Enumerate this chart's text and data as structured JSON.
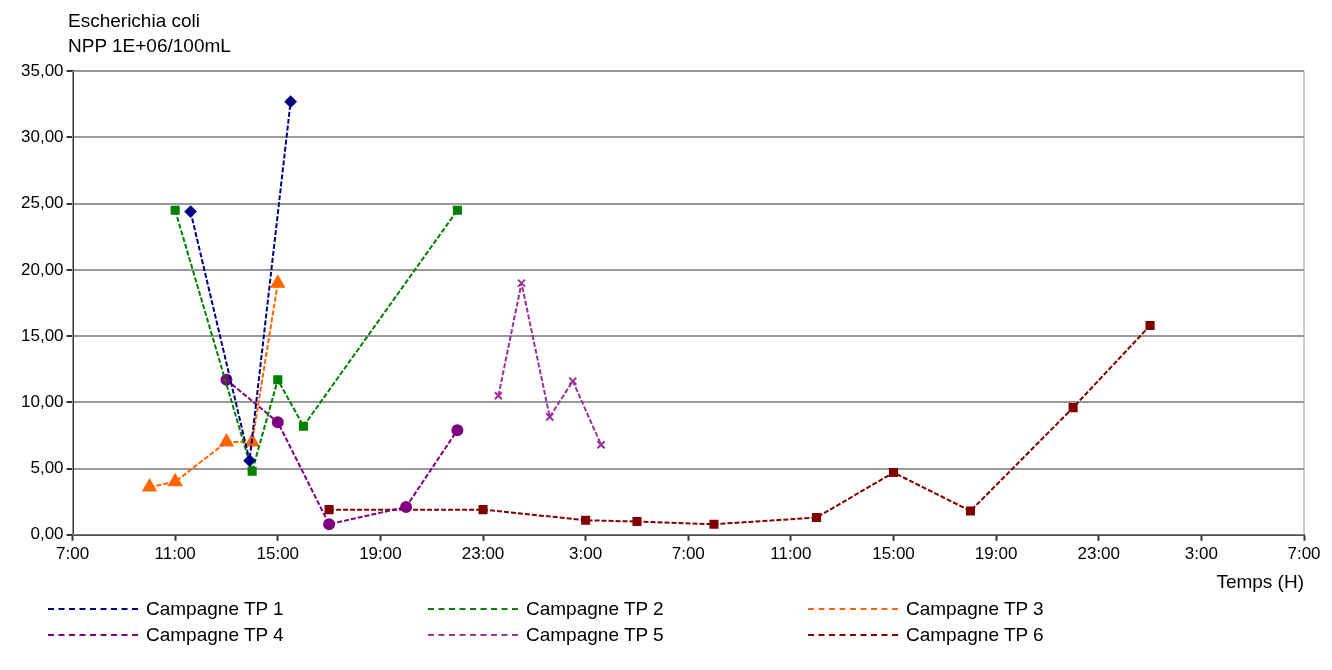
{
  "chart_data": {
    "type": "line",
    "ylabel": "Escherichia coli\nNPP 1E+06/100mL",
    "xlabel": "Temps (H)",
    "xlim": [
      "--01-01T07:00",
      "--01-03T07:00"
    ],
    "xticks": [
      {
        "value": "--01-01T07:00",
        "label": "7:00"
      },
      {
        "value": "--01-01T11:00",
        "label": "11:00"
      },
      {
        "value": "--01-01T15:00",
        "label": "15:00"
      },
      {
        "value": "--01-01T19:00",
        "label": "19:00"
      },
      {
        "value": "--01-01T23:00",
        "label": "23:00"
      },
      {
        "value": "--01-02T03:00",
        "label": "3:00"
      },
      {
        "value": "--01-02T07:00",
        "label": "7:00"
      },
      {
        "value": "--01-02T11:00",
        "label": "11:00"
      },
      {
        "value": "--01-02T15:00",
        "label": "15:00"
      },
      {
        "value": "--01-02T19:00",
        "label": "19:00"
      },
      {
        "value": "--01-02T23:00",
        "label": "23:00"
      },
      {
        "value": "--01-03T03:00",
        "label": "3:00"
      },
      {
        "value": "--01-03T07:00",
        "label": "7:00"
      }
    ],
    "ylim": [
      0,
      35
    ],
    "yticks": [
      {
        "value": 0,
        "label": "0,00"
      },
      {
        "value": 5,
        "label": "5,00"
      },
      {
        "value": 10,
        "label": "10,00"
      },
      {
        "value": 15,
        "label": "15,00"
      },
      {
        "value": 20,
        "label": "20,00"
      },
      {
        "value": 25,
        "label": "25,00"
      },
      {
        "value": 30,
        "label": "30,00"
      },
      {
        "value": 35,
        "label": "35,00"
      }
    ],
    "grid": "y",
    "legend": "bottom",
    "line_style": "dashed",
    "series": [
      {
        "name": "Campagne TP 1",
        "color": "#000080",
        "marker": "diamond",
        "x": [
          "--01-01T11:36",
          "--01-01T13:54",
          "--01-01T15:30"
        ],
        "values": [
          24.4,
          5.6,
          32.7
        ]
      },
      {
        "name": "Campagne TP 2",
        "color": "#008000",
        "marker": "square",
        "x": [
          "--01-01T11:00",
          "--01-01T14:00",
          "--01-01T15:00",
          "--01-01T16:00",
          "--01-01T22:00"
        ],
        "values": [
          24.5,
          4.8,
          11.7,
          8.2,
          24.5
        ]
      },
      {
        "name": "Campagne TP 3",
        "color": "#ff6600",
        "marker": "triangle",
        "x": [
          "--01-01T10:00",
          "--01-01T11:00",
          "--01-01T13:00",
          "--01-01T14:00",
          "--01-01T15:00"
        ],
        "values": [
          3.6,
          4.0,
          7.0,
          7.0,
          19.0
        ]
      },
      {
        "name": "Campagne TP 4",
        "color": "#800080",
        "marker": "circle",
        "x": [
          "--01-01T13:00",
          "--01-01T15:00",
          "--01-01T17:00",
          "--01-01T20:00",
          "--01-01T22:00"
        ],
        "values": [
          11.7,
          8.5,
          0.8,
          2.1,
          7.9
        ]
      },
      {
        "name": "Campagne TP 5",
        "color": "#993399",
        "marker": "cross",
        "x": [
          "--01-01T23:36",
          "--01-02T00:30",
          "--01-02T01:36",
          "--01-02T02:30",
          "--01-02T03:36"
        ],
        "values": [
          10.5,
          19.0,
          8.9,
          11.6,
          6.8
        ]
      },
      {
        "name": "Campagne TP 6",
        "color": "#800000",
        "marker": "square",
        "x": [
          "--01-01T17:00",
          "--01-01T23:00",
          "--01-02T03:00",
          "--01-02T05:00",
          "--01-02T08:00",
          "--01-02T12:00",
          "--01-02T15:00",
          "--01-02T18:00",
          "--01-02T22:00",
          "--01-03T01:00"
        ],
        "values": [
          1.9,
          1.9,
          1.1,
          1.0,
          0.8,
          1.3,
          4.7,
          1.8,
          9.6,
          15.8
        ]
      }
    ]
  }
}
